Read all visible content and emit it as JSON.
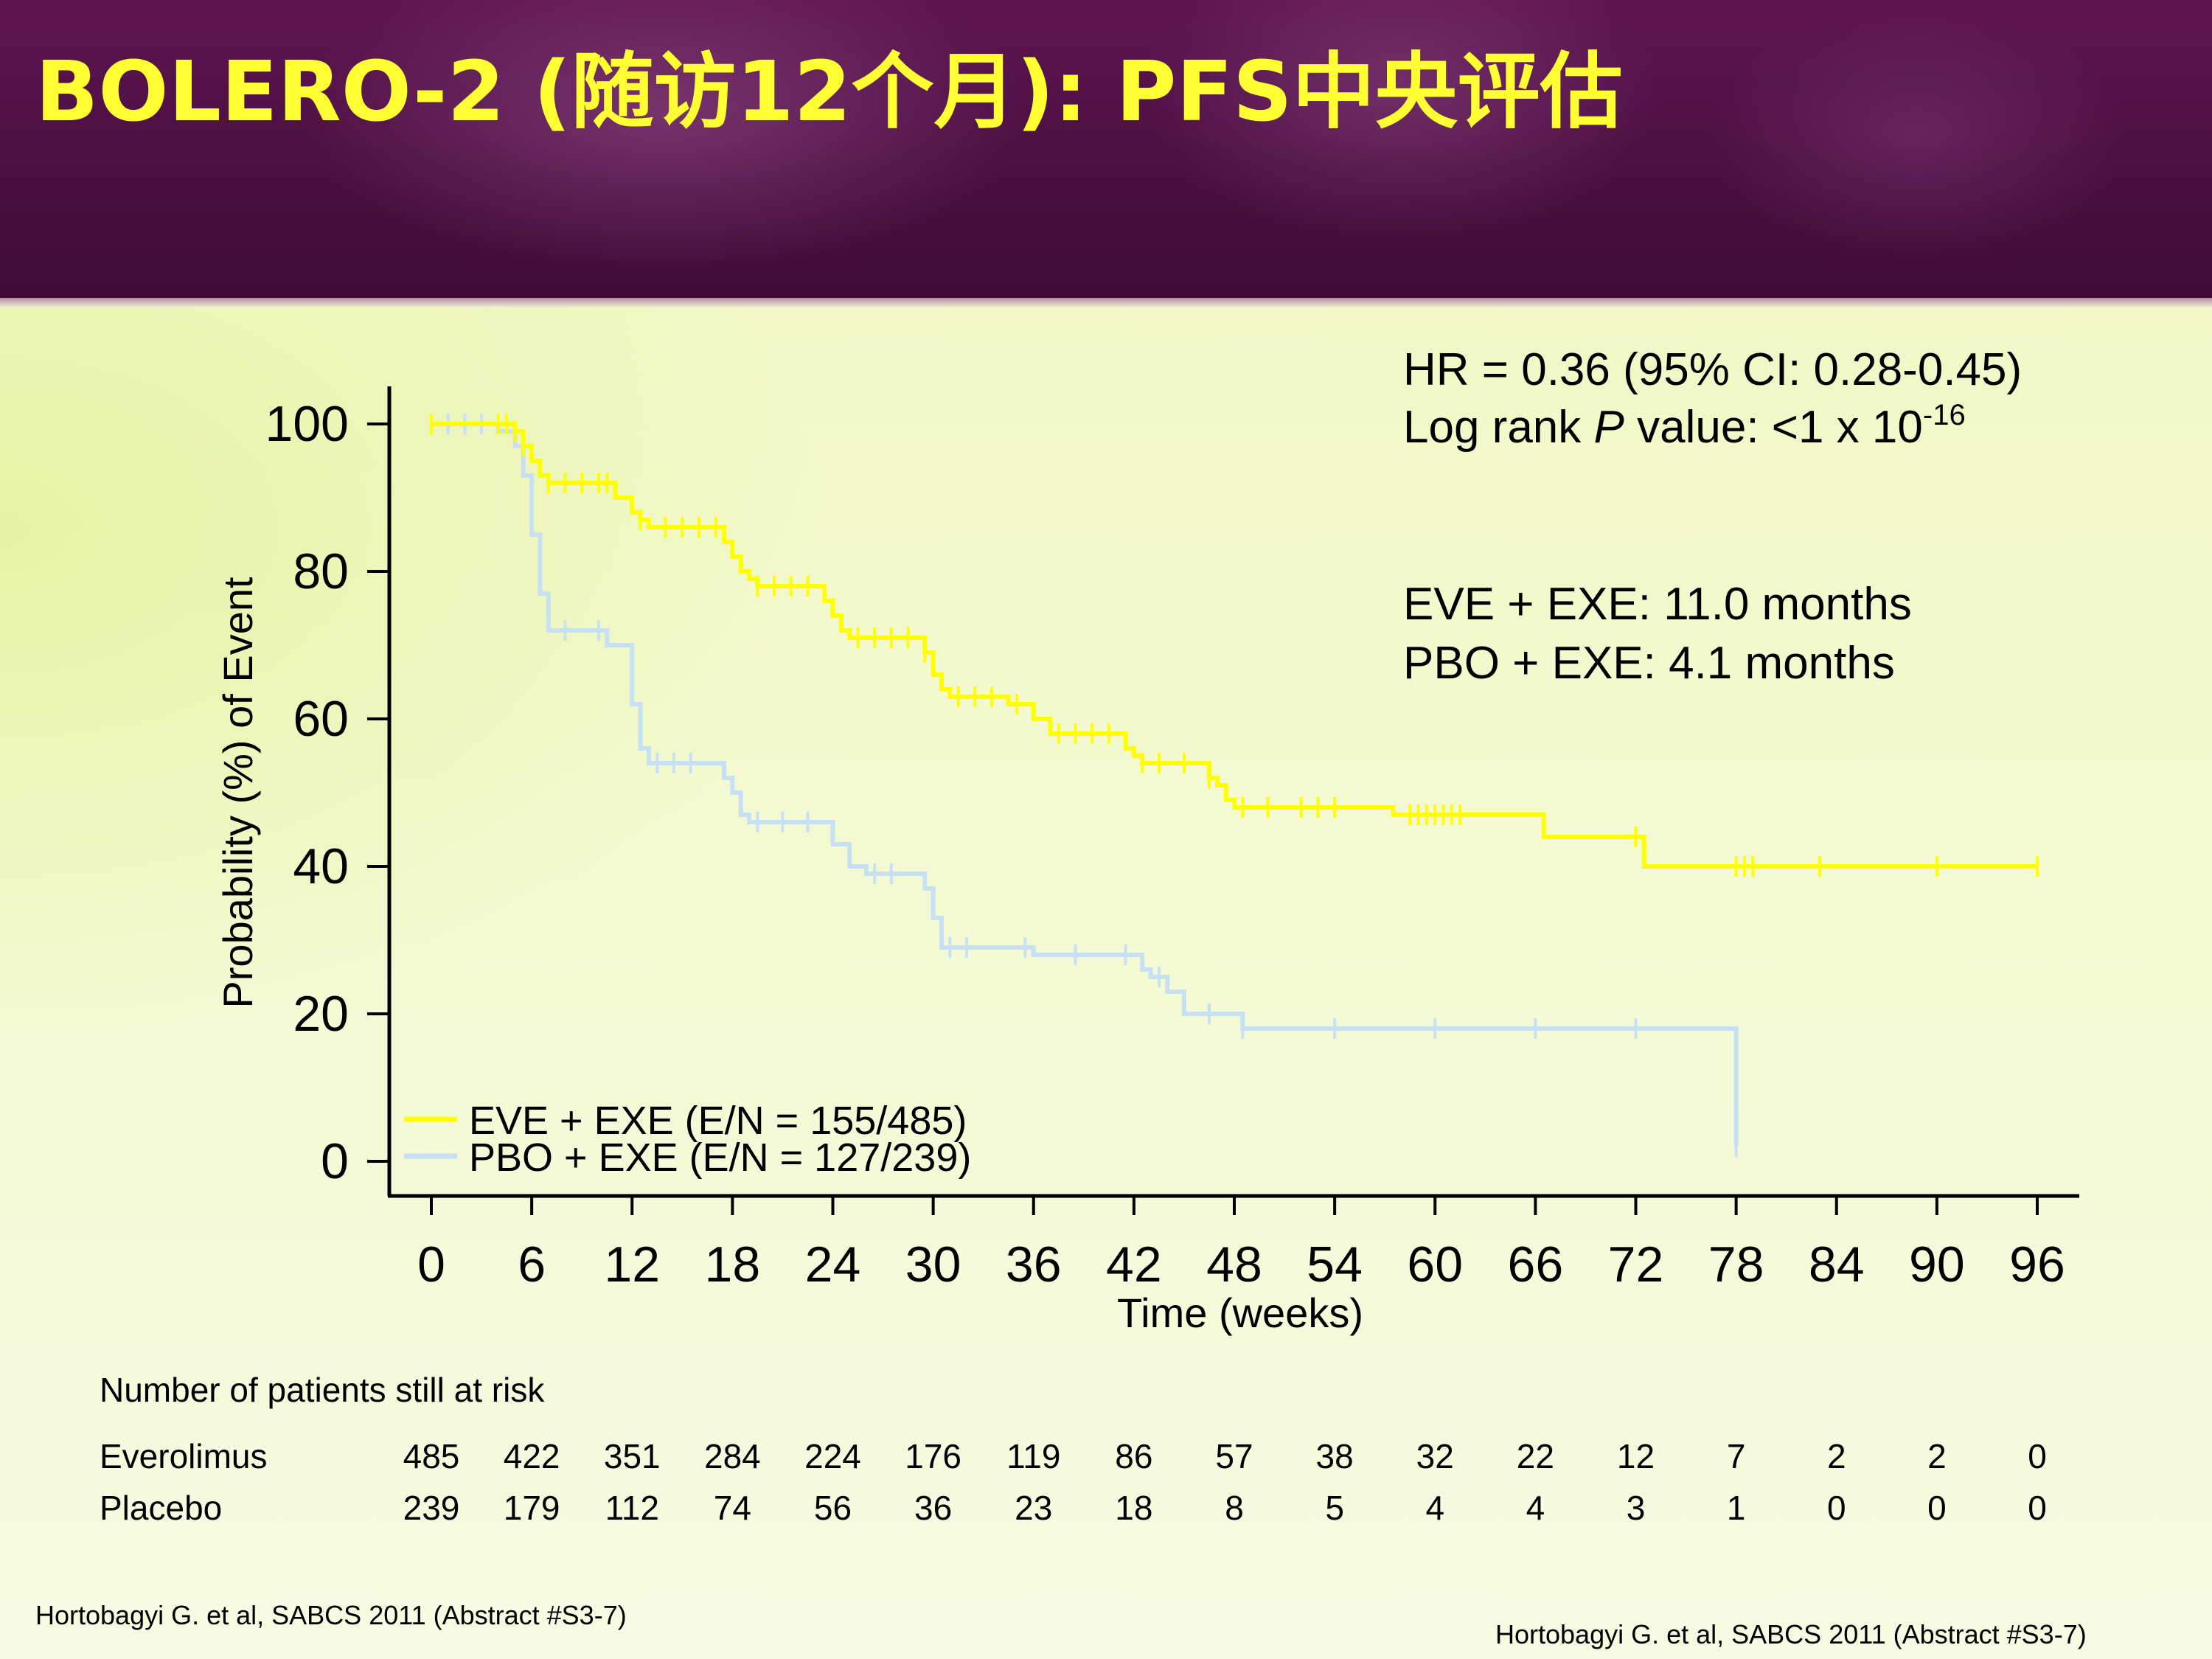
{
  "slide": {
    "title": "BOLERO-2 (随访12个月): PFS中央评估",
    "colors": {
      "banner": "#4a0f40",
      "title": "#ffff33",
      "background": "#f2f9cf"
    }
  },
  "chart_data": {
    "type": "line",
    "subtype": "kaplan-meier step curve with censor ticks",
    "xlabel": "Time (weeks)",
    "ylabel": "Probability (%) of Event",
    "xlim": [
      0,
      96
    ],
    "ylim": [
      0,
      100
    ],
    "x_ticks": [
      0,
      6,
      12,
      18,
      24,
      30,
      36,
      42,
      48,
      54,
      60,
      66,
      72,
      78,
      84,
      90,
      96
    ],
    "y_ticks": [
      0,
      20,
      40,
      60,
      80,
      100
    ],
    "grid": false,
    "legend_position": "bottom-left",
    "series": [
      {
        "name": "EVE + EXE (E/N = 155/485)",
        "color": "#ffff00",
        "points": [
          [
            0,
            100
          ],
          [
            4,
            100
          ],
          [
            5,
            99
          ],
          [
            5.5,
            97
          ],
          [
            6,
            95
          ],
          [
            6.5,
            93
          ],
          [
            7,
            92
          ],
          [
            10,
            92
          ],
          [
            11,
            90
          ],
          [
            12,
            88
          ],
          [
            12.5,
            87
          ],
          [
            13,
            86
          ],
          [
            17,
            86
          ],
          [
            17.5,
            84
          ],
          [
            18,
            82
          ],
          [
            18.5,
            80
          ],
          [
            19,
            79
          ],
          [
            19.5,
            78
          ],
          [
            23,
            78
          ],
          [
            23.5,
            76
          ],
          [
            24,
            74
          ],
          [
            24.5,
            72
          ],
          [
            25,
            71
          ],
          [
            29,
            71
          ],
          [
            29.5,
            69
          ],
          [
            30,
            66
          ],
          [
            30.5,
            64
          ],
          [
            31,
            63
          ],
          [
            34,
            63
          ],
          [
            34.5,
            62
          ],
          [
            36,
            60
          ],
          [
            37,
            58
          ],
          [
            41,
            58
          ],
          [
            41.5,
            56
          ],
          [
            42,
            55
          ],
          [
            42.5,
            54
          ],
          [
            46,
            54
          ],
          [
            46.5,
            52
          ],
          [
            47,
            51
          ],
          [
            47.5,
            49
          ],
          [
            48,
            48
          ],
          [
            57,
            48
          ],
          [
            57.5,
            47
          ],
          [
            66,
            47
          ],
          [
            66.5,
            44
          ],
          [
            72,
            44
          ],
          [
            72.5,
            40
          ],
          [
            96,
            40
          ]
        ],
        "censor_x": [
          0,
          4,
          4.5,
          5,
          5.5,
          7,
          8,
          9,
          10,
          10.5,
          12.5,
          14,
          15,
          16,
          17,
          19.5,
          20.5,
          21.5,
          22.5,
          25.5,
          26.5,
          27.5,
          28.5,
          29.5,
          31.5,
          32.5,
          33.5,
          35,
          37.5,
          38.5,
          39.5,
          40.5,
          42.5,
          43.5,
          45,
          46.5,
          48.5,
          50,
          52,
          53,
          54,
          58.5,
          59,
          59.5,
          60,
          60.5,
          61,
          61.5,
          72,
          78,
          78.5,
          79,
          83,
          90,
          96
        ]
      },
      {
        "name": "PBO + EXE (E/N = 127/239)",
        "color": "#c8e0f4",
        "points": [
          [
            0,
            100
          ],
          [
            3,
            100
          ],
          [
            4,
            99
          ],
          [
            5,
            97
          ],
          [
            5.5,
            93
          ],
          [
            6,
            85
          ],
          [
            6.5,
            77
          ],
          [
            7,
            72
          ],
          [
            10,
            72
          ],
          [
            10.5,
            70
          ],
          [
            11.5,
            70
          ],
          [
            12,
            62
          ],
          [
            12.5,
            56
          ],
          [
            13,
            54
          ],
          [
            17,
            54
          ],
          [
            17.5,
            52
          ],
          [
            18,
            50
          ],
          [
            18.5,
            47
          ],
          [
            19,
            46
          ],
          [
            23,
            46
          ],
          [
            24,
            43
          ],
          [
            25,
            40
          ],
          [
            26,
            39
          ],
          [
            29,
            39
          ],
          [
            29.5,
            37
          ],
          [
            30,
            33
          ],
          [
            30.5,
            29
          ],
          [
            35,
            29
          ],
          [
            36,
            28
          ],
          [
            42,
            28
          ],
          [
            42.5,
            26
          ],
          [
            43,
            25
          ],
          [
            44,
            23
          ],
          [
            45,
            20
          ],
          [
            48,
            20
          ],
          [
            48.5,
            18
          ],
          [
            78,
            18
          ],
          [
            78,
            2
          ]
        ],
        "censor_x": [
          0,
          1,
          2,
          3,
          8,
          10,
          13.5,
          14.5,
          15.5,
          19.5,
          21,
          22.5,
          26.5,
          27.5,
          31,
          32,
          35.5,
          38.5,
          41.5,
          43.5,
          46.5,
          48.5,
          54,
          60,
          66,
          72,
          78
        ]
      }
    ],
    "annotations": {
      "hr": "HR = 0.36 (95% CI: 0.28-0.45)",
      "logrank_prefix": "Log rank ",
      "logrank_p": "P",
      "logrank_value": " value: <1 x 10",
      "logrank_exp": "-16",
      "median_eve": "EVE + EXE: 11.0 months",
      "median_pbo": "PBO + EXE: 4.1 months"
    },
    "risk_table": {
      "header": "Number of patients still at risk",
      "rows": [
        {
          "label": "Everolimus",
          "values": [
            "485",
            "422",
            "351",
            "284",
            "224",
            "176",
            "119",
            "86",
            "57",
            "38",
            "32",
            "22",
            "12",
            "7",
            "2",
            "2",
            "0"
          ]
        },
        {
          "label": "Placebo",
          "values": [
            "239",
            "179",
            "112",
            "74",
            "56",
            "36",
            "23",
            "18",
            "8",
            "5",
            "4",
            "4",
            "3",
            "1",
            "0",
            "0",
            "0"
          ]
        }
      ]
    }
  },
  "footnotes": {
    "left": "Hortobagyi G. et al, SABCS  2011 (Abstract #S3-7)",
    "right": "Hortobagyi G. et al, SABCS  2011 (Abstract #S3-7)"
  }
}
